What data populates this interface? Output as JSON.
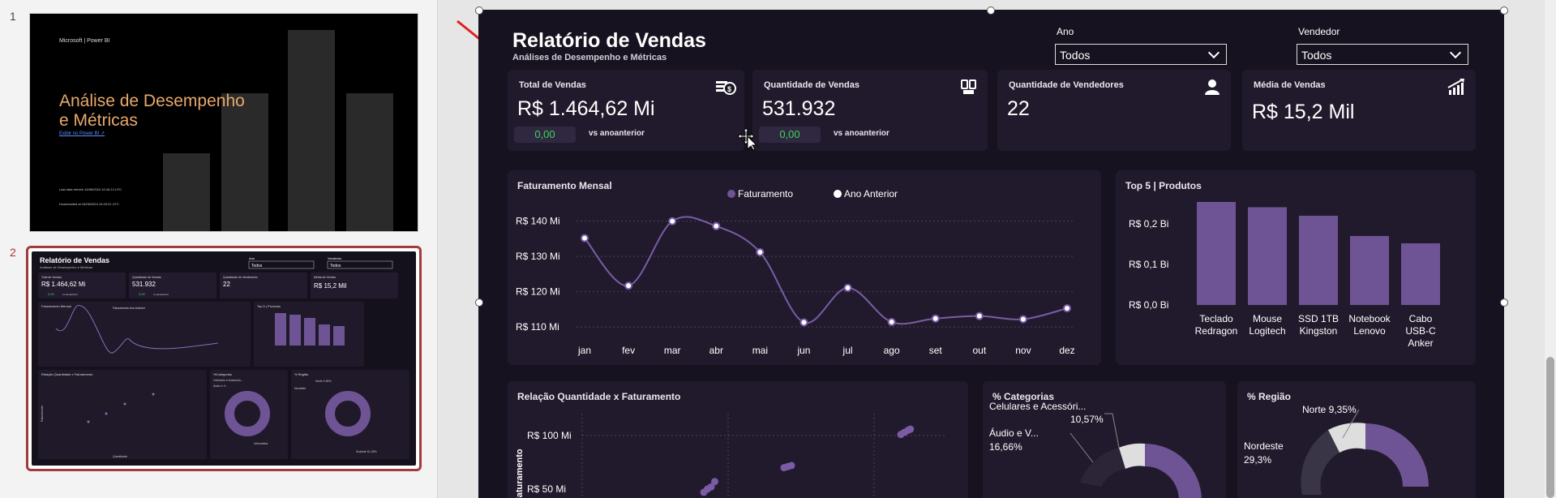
{
  "slides_panel": {
    "slide1_number": "1",
    "slide2_number": "2",
    "slide1": {
      "brand": "Microsoft | Power BI",
      "title": "Análise de Desempenho e Métricas",
      "link": "Exibir no Power BI ↗",
      "meta1": "Last data refresh 16/06/2024 10:16:13 UTC",
      "meta2": "Downloaded at 16/06/2024 10:20:21 UTC"
    },
    "slide2": {
      "title": "Relatório de Vendas",
      "subtitle": "Análises de Desempenho e Métricas",
      "ano_label": "Ano",
      "vendedor_label": "Vendedor",
      "todos": "Todos",
      "kpi1_label": "Total de Vendas",
      "kpi1_value": "R$ 1.464,62 Mi",
      "kpi2_label": "Quantidade de Vendas",
      "kpi2_value": "531.932",
      "kpi3_label": "Quantidade de Vendedores",
      "kpi3_value": "22",
      "kpi4_label": "Média de Vendas",
      "kpi4_value": "R$ 15,2 Mil",
      "badge": "0,00",
      "vs": "vs anoanterior",
      "fat_title": "Faturamento  Mensal",
      "legend": "Faturamento  Ano Anterior",
      "top5_title": "Top 5 | Produtos",
      "scatter_title": "Relação Quantidade x Faturamento",
      "cat_title": "%Categorias",
      "reg_title": "% Região",
      "y_axis": "Faturamento",
      "x_axis": "Quantidade",
      "cat_label1": "Celulares e Acessório...",
      "cat_pct1": "10,57%",
      "cat_label2": "Áudio e V...",
      "cat_pct2": "16,66%",
      "cat_label3": "Informática",
      "cat_pct3": "72,78%",
      "reg_label1": "Norte 9,35%",
      "reg_label2": "Nordeste",
      "reg_pct2": "29,3%",
      "reg_label3": "Sudeste 61,35%"
    }
  },
  "report": {
    "title": "Relatório de Vendas",
    "subtitle": "Análises de Desempenho e Métricas",
    "filters": {
      "ano_label": "Ano",
      "ano_value": "Todos",
      "vendedor_label": "Vendedor",
      "vendedor_value": "Todos"
    },
    "kpis": [
      {
        "label": "Total de Vendas",
        "value": "R$ 1.464,62 Mi",
        "badge": "0,00",
        "vs": "vs anoanterior",
        "icon": "money-coins-icon"
      },
      {
        "label": "Quantidade de Vendas",
        "value": "531.932",
        "badge": "0,00",
        "vs": "vs anoanterior",
        "icon": "cart-icon"
      },
      {
        "label": "Quantidade de Vendedores",
        "value": "22",
        "icon": "person-icon"
      },
      {
        "label": "Média de Vendas",
        "value": "R$ 15,2 Mil",
        "icon": "growth-chart-icon"
      }
    ],
    "monthly": {
      "title": "Faturamento  Mensal",
      "legend": [
        "Faturamento",
        "Ano Anterior"
      ]
    },
    "top5": {
      "title": "Top 5 | Produtos"
    },
    "scatter": {
      "title": "Relação Quantidade x Faturamento",
      "ylabel": "Faturamento"
    },
    "categorias": {
      "title": "% Categorias",
      "label1": "Celulares e Acessóri...",
      "pct1": "10,57%",
      "label2": "Áudio e V...",
      "pct2": "16,66%"
    },
    "regiao": {
      "title": "% Região",
      "label1": "Norte 9,35%",
      "label2": "Nordeste",
      "pct2": "29,3%"
    }
  },
  "colors": {
    "accent": "#6e5494",
    "background": "#17121f",
    "card": "#211a2c",
    "positive": "#3ed45a",
    "selection": "#a43a3a"
  },
  "chart_data": [
    {
      "type": "line",
      "title": "Faturamento  Mensal",
      "categories": [
        "jan",
        "fev",
        "mar",
        "abr",
        "mai",
        "jun",
        "jul",
        "ago",
        "set",
        "out",
        "nov",
        "dez"
      ],
      "series": [
        {
          "name": "Faturamento",
          "values": [
            135.2,
            121.7,
            140,
            138.6,
            131.2,
            111.3,
            121.1,
            111.4,
            112.4,
            113.1,
            112.2,
            115.3
          ]
        }
      ],
      "y_ticks": [
        "R$ 110 Mi",
        "R$ 120 Mi",
        "R$ 130 Mi",
        "R$ 140 Mi"
      ],
      "ylim": [
        107.5,
        142
      ]
    },
    {
      "type": "bar",
      "title": "Top 5 | Produtos",
      "categories": [
        "Teclado Redragon",
        "Mouse Logitech",
        "SSD 1TB Kingston",
        "Notebook Lenovo",
        "Cabo USB-C Anker"
      ],
      "values": [
        0.254,
        0.241,
        0.22,
        0.17,
        0.152
      ],
      "y_ticks": [
        "R$ 0,0 Bi",
        "R$ 0,1 Bi",
        "R$ 0,2 Bi"
      ],
      "ylim": [
        0,
        0.26
      ]
    },
    {
      "type": "scatter",
      "title": "Relação Quantidade x Faturamento",
      "ylabel": "Faturamento",
      "y_ticks": [
        "R$ 50 Mi",
        "R$ 100 Mi"
      ],
      "series": [
        {
          "values": [
            [
              30000,
              47
            ],
            [
              30500,
              50
            ],
            [
              31000,
              52
            ],
            [
              31500,
              57
            ],
            [
              41000,
              70
            ],
            [
              41500,
              71
            ],
            [
              42000,
              72
            ],
            [
              57000,
              101
            ],
            [
              57500,
              103
            ],
            [
              58000,
              105
            ],
            [
              58300,
              106
            ]
          ]
        }
      ]
    }
  ]
}
